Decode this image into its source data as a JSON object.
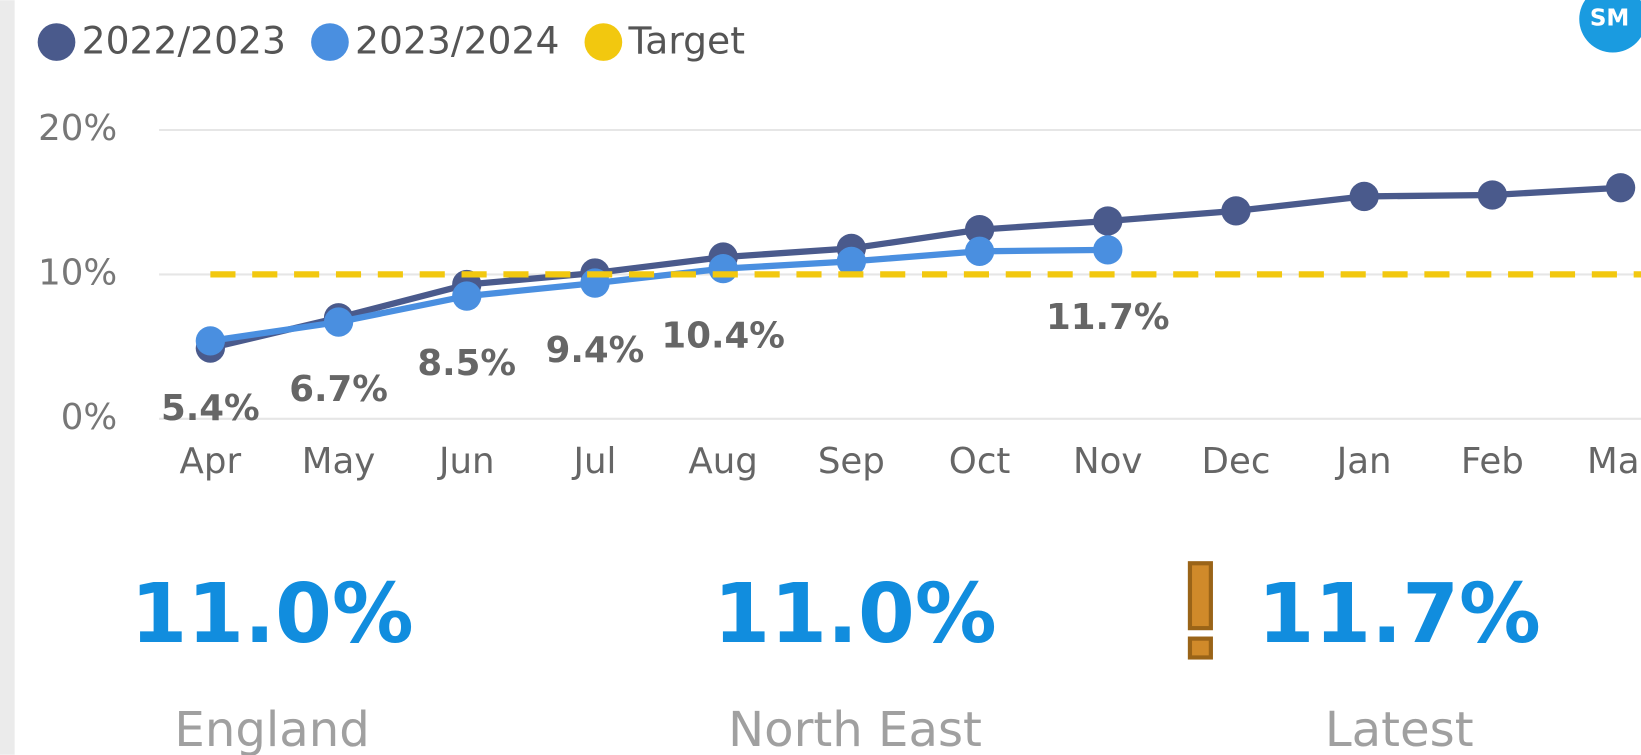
{
  "badge": "SM",
  "chart_data": {
    "type": "line",
    "categories": [
      "Apr",
      "May",
      "Jun",
      "Jul",
      "Aug",
      "Sep",
      "Oct",
      "Nov",
      "Dec",
      "Jan",
      "Feb",
      "Mar"
    ],
    "series": [
      {
        "name": "2022/2023",
        "color": "#4a5a8c",
        "values": [
          4.9,
          7.0,
          9.3,
          10.1,
          11.2,
          11.8,
          13.1,
          13.7,
          14.4,
          15.4,
          15.5,
          16.0
        ]
      },
      {
        "name": "2023/2024",
        "color": "#4a8fe0",
        "values": [
          5.4,
          6.7,
          8.5,
          9.4,
          10.4,
          10.9,
          11.6,
          11.7,
          null,
          null,
          null,
          null
        ],
        "value_labels": [
          "5.4%",
          "6.7%",
          "8.5%",
          "9.4%",
          "10.4%",
          null,
          null,
          "11.7%",
          null,
          null,
          null,
          null
        ]
      },
      {
        "name": "Target",
        "color": "#f2c80f",
        "target": 10
      }
    ],
    "ylim": [
      0,
      20
    ],
    "yticks": [
      {
        "value": 0,
        "label": "0%"
      },
      {
        "value": 10,
        "label": "10%"
      },
      {
        "value": 20,
        "label": "20%"
      }
    ],
    "grid": true,
    "legend": "top-left"
  },
  "kpis": [
    {
      "value": "11.0%",
      "label": "England"
    },
    {
      "value": "11.0%",
      "label": "North East"
    },
    {
      "value": "11.7%",
      "label": "Latest",
      "warning": true
    }
  ]
}
